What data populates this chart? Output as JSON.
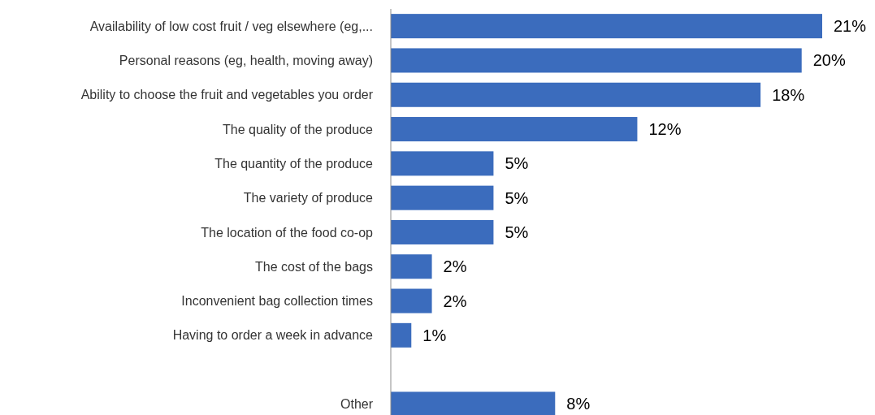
{
  "chart_data": {
    "type": "bar",
    "orientation": "horizontal",
    "categories": [
      "Availability of low cost fruit / veg elsewhere (eg,...",
      "Personal reasons (eg, health, moving away)",
      "Ability to choose the fruit and vegetables you order",
      "The quality of the produce",
      "The quantity of the produce",
      "The variety of produce",
      "The location of the food co-op",
      "The cost of the bags",
      "Inconvenient bag collection times",
      "Having to order a week in advance",
      null,
      "Other"
    ],
    "values": [
      21,
      20,
      18,
      12,
      5,
      5,
      5,
      2,
      2,
      1,
      null,
      8
    ],
    "value_labels": [
      "21%",
      "20%",
      "18%",
      "12%",
      "5%",
      "5%",
      "5%",
      "2%",
      "2%",
      "1%",
      null,
      "8%"
    ],
    "color": "#3b6cbd"
  }
}
